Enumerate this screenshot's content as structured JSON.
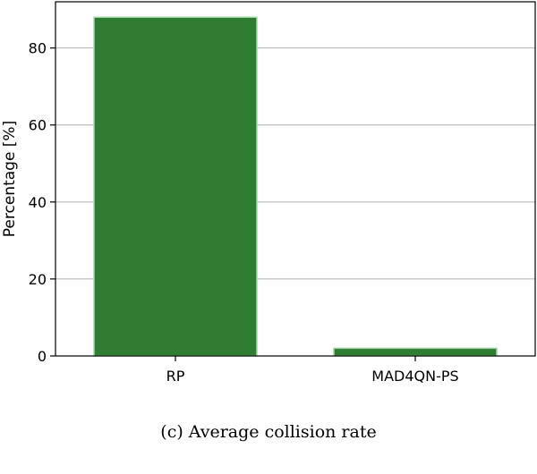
{
  "caption": "(c) Average collision rate",
  "chart_data": {
    "type": "bar",
    "categories": [
      "RP",
      "MAD4QN-PS"
    ],
    "values": [
      88,
      2
    ],
    "title": "",
    "xlabel": "",
    "ylabel": "Percentage [%]",
    "ylim": [
      0,
      92
    ],
    "yticks": [
      0,
      20,
      40,
      60,
      80
    ],
    "grid": "horizontal",
    "colors": {
      "bar_fill": "#2e7d32",
      "bar_edge": "#a5d6a7",
      "grid": "#b0b0b0",
      "axes": "#000000"
    }
  }
}
